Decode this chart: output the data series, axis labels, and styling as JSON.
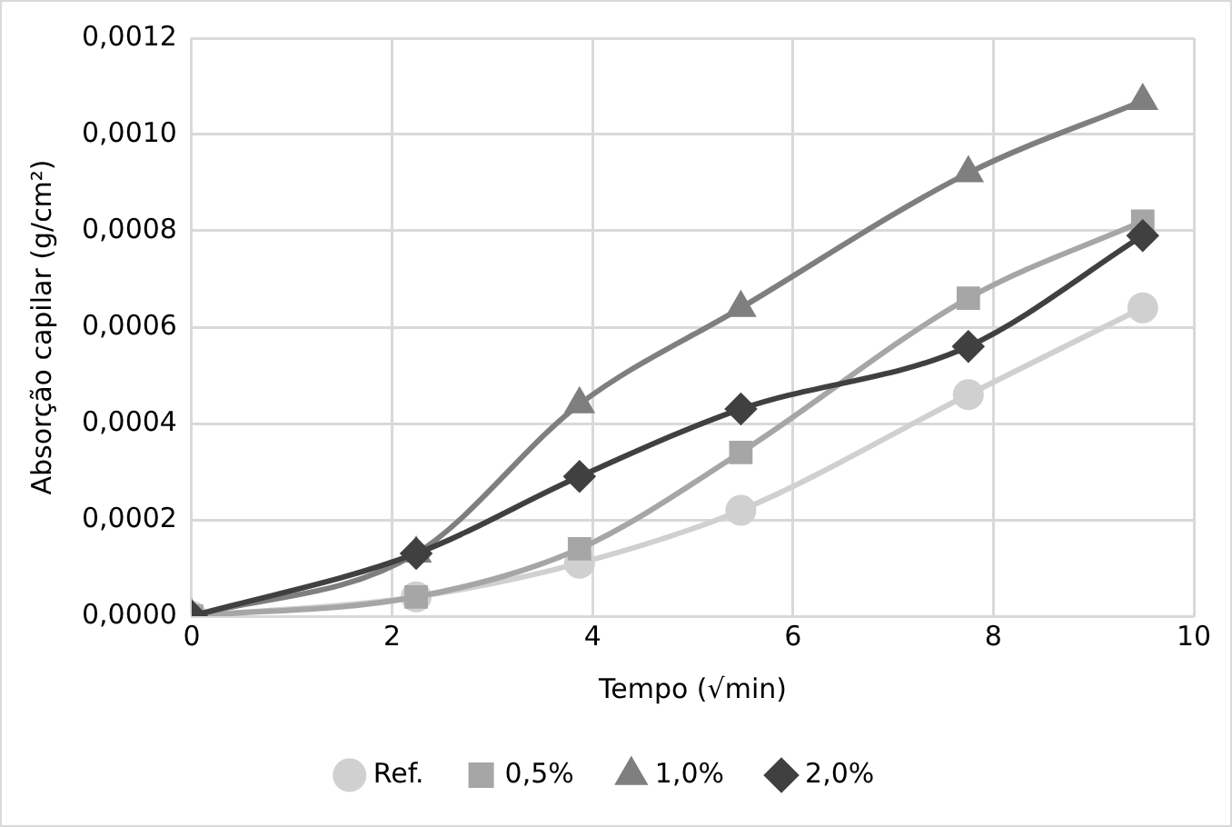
{
  "chart_data": {
    "type": "line",
    "xlabel": "Tempo (√min)",
    "ylabel": "Absorção capilar (g/cm²)",
    "x": [
      0,
      2.24,
      3.87,
      5.48,
      7.75,
      9.49
    ],
    "series": [
      {
        "name": "Ref.",
        "color": "#d0d0d0",
        "marker": "circle",
        "values": [
          0,
          4e-05,
          0.00011,
          0.00022,
          0.00046,
          0.00064
        ]
      },
      {
        "name": "0,5%",
        "color": "#a6a6a6",
        "marker": "square",
        "values": [
          0,
          4e-05,
          0.00014,
          0.00034,
          0.00066,
          0.00082
        ]
      },
      {
        "name": "1,0%",
        "color": "#7f7f7f",
        "marker": "triangle",
        "values": [
          0,
          0.00013,
          0.00044,
          0.00064,
          0.00092,
          0.00107
        ]
      },
      {
        "name": "2,0%",
        "color": "#404040",
        "marker": "diamond",
        "values": [
          0,
          0.00013,
          0.00029,
          0.00043,
          0.00056,
          0.00079
        ]
      }
    ],
    "xlim": [
      0,
      10
    ],
    "xticks": [
      0,
      2,
      4,
      6,
      8,
      10
    ],
    "ylim": [
      0,
      0.0012
    ],
    "yticks": [
      {
        "value": 0,
        "label": "0,0000"
      },
      {
        "value": 0.0002,
        "label": "0,0002"
      },
      {
        "value": 0.0004,
        "label": "0,0004"
      },
      {
        "value": 0.0006,
        "label": "0,0006"
      },
      {
        "value": 0.0008,
        "label": "0,0008"
      },
      {
        "value": 0.001,
        "label": "0,0010"
      },
      {
        "value": 0.0012,
        "label": "0,0012"
      }
    ],
    "grid": true,
    "legend": "bottom"
  }
}
